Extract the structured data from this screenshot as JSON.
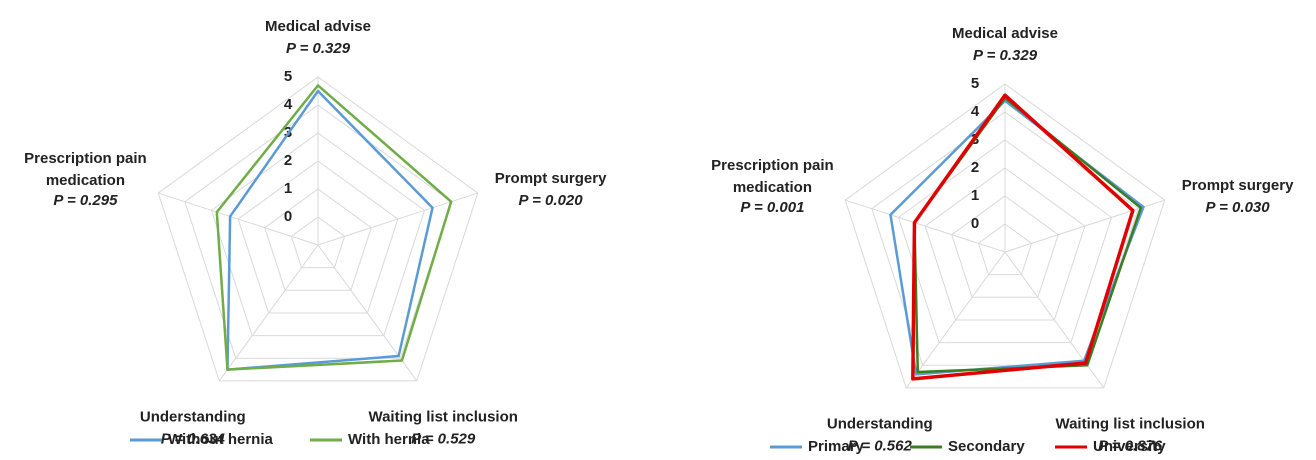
{
  "chart_data": [
    {
      "type": "radar",
      "categories": [
        "Medical advise",
        "Prompt surgery",
        "Waiting list inclusion",
        "Understanding",
        "Prescription pain medication"
      ],
      "annotations": [
        "P = 0.329",
        "P = 0.020",
        "P = 0.529",
        "P = 0.634",
        "P = 0.295"
      ],
      "rlim": [
        -1,
        5
      ],
      "rticks": [
        0,
        1,
        2,
        3,
        4,
        5
      ],
      "grid": true,
      "legend": "bottom",
      "series": [
        {
          "name": "Without hernia",
          "color": "#5b9bd5",
          "values": [
            4.5,
            3.3,
            3.9,
            4.5,
            2.3
          ]
        },
        {
          "name": "With hernia",
          "color": "#70ad47",
          "values": [
            4.7,
            4.0,
            4.1,
            4.5,
            2.8
          ]
        }
      ]
    },
    {
      "type": "radar",
      "categories": [
        "Medical advise",
        "Prompt surgery",
        "Waiting list inclusion",
        "Understanding",
        "Prescription pain medication"
      ],
      "annotations": [
        "P = 0.329",
        "P = 0.030",
        "P = 0.876",
        "P = 0.562",
        "P = 0.001"
      ],
      "rlim": [
        -1,
        5
      ],
      "rticks": [
        0,
        1,
        2,
        3,
        4,
        5
      ],
      "grid": true,
      "legend": "bottom",
      "series": [
        {
          "name": "Primary",
          "color": "#5b9bd5",
          "values": [
            4.4,
            4.2,
            3.8,
            4.4,
            3.3
          ]
        },
        {
          "name": "Secondary",
          "color": "#3a7d22",
          "values": [
            4.5,
            4.1,
            4.0,
            4.3,
            2.4
          ]
        },
        {
          "name": "University",
          "color": "#e00000",
          "values": [
            4.6,
            3.8,
            3.9,
            4.6,
            2.4
          ]
        }
      ]
    }
  ]
}
